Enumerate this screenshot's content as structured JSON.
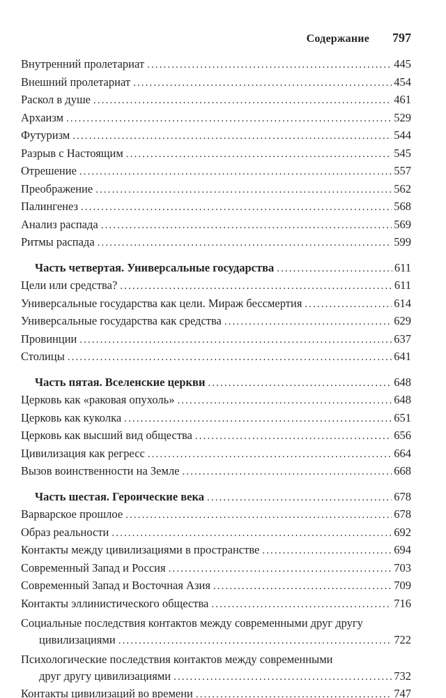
{
  "colors": {
    "background": "#ffffff",
    "text": "#242424"
  },
  "running_head": {
    "title": "Содержание",
    "folio": "797"
  },
  "toc": {
    "entries": [
      {
        "label": "Внутренний пролетариат",
        "page": "445",
        "style": "normal"
      },
      {
        "label": "Внешний пролетариат",
        "page": "454",
        "style": "normal"
      },
      {
        "label": "Раскол в душе",
        "page": "461",
        "style": "normal"
      },
      {
        "label": "Архаизм",
        "page": "529",
        "style": "normal"
      },
      {
        "label": "Футуризм",
        "page": "544",
        "style": "normal"
      },
      {
        "label": "Разрыв с Настоящим",
        "page": "545",
        "style": "normal"
      },
      {
        "label": "Отрешение",
        "page": "557",
        "style": "normal"
      },
      {
        "label": "Преображение",
        "page": "562",
        "style": "normal"
      },
      {
        "label": "Палингенез",
        "page": "568",
        "style": "normal"
      },
      {
        "label": "Анализ распада",
        "page": "569",
        "style": "normal"
      },
      {
        "label": "Ритмы распада",
        "page": "599",
        "style": "normal"
      },
      {
        "label": "Часть четвертая. Универсальные государства",
        "page": "611",
        "style": "part",
        "gap_before": true
      },
      {
        "label": "Цели или средства?",
        "page": "611",
        "style": "normal"
      },
      {
        "label": "Универсальные государства как цели. Мираж бессмертия",
        "page": "614",
        "style": "normal"
      },
      {
        "label": "Универсальные государства как средства",
        "page": "629",
        "style": "normal"
      },
      {
        "label": "Провинции",
        "page": "637",
        "style": "normal"
      },
      {
        "label": "Столицы",
        "page": "641",
        "style": "normal"
      },
      {
        "label": "Часть пятая. Вселенские церкви",
        "page": "648",
        "style": "part",
        "gap_before": true
      },
      {
        "label": "Церковь как «раковая опухоль»",
        "page": "648",
        "style": "normal"
      },
      {
        "label": "Церковь как куколка",
        "page": "651",
        "style": "normal"
      },
      {
        "label": "Церковь как высший вид общества",
        "page": "656",
        "style": "normal"
      },
      {
        "label": "Цивилизация как регресс",
        "page": "664",
        "style": "normal"
      },
      {
        "label": "Вызов воинственности на Земле",
        "page": "668",
        "style": "normal"
      },
      {
        "label": "Часть шестая. Героические века",
        "page": "678",
        "style": "part",
        "gap_before": true
      },
      {
        "label": "Варварское прошлое",
        "page": "678",
        "style": "normal"
      },
      {
        "label": "Образ реальности",
        "page": "692",
        "style": "normal"
      },
      {
        "label": "Контакты между цивилизациями в пространстве",
        "page": "694",
        "style": "normal"
      },
      {
        "label": "Современный Запад и Россия",
        "page": "703",
        "style": "normal"
      },
      {
        "label": "Современный Запад и Восточная Азия",
        "page": "709",
        "style": "normal"
      },
      {
        "label": "Контакты эллинистического общества",
        "page": "716",
        "style": "normal"
      },
      {
        "label": "Социальные последствия контактов между современными друг другу",
        "label2": "цивилизациями",
        "page": "722",
        "style": "normal"
      },
      {
        "label": "Психологические последствия контактов между современными",
        "label2": "друг другу цивилизациями",
        "page": "732",
        "style": "normal"
      },
      {
        "label": "Контакты цивилизаций во времени",
        "page": "747",
        "style": "normal"
      }
    ]
  }
}
